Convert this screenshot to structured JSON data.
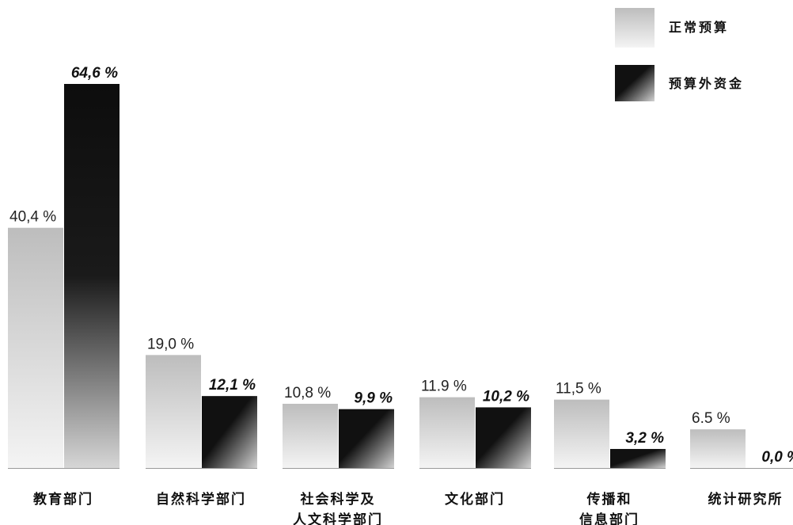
{
  "chart_data": {
    "type": "bar",
    "title": "",
    "xlabel": "",
    "ylabel": "",
    "ylim": [
      0,
      66
    ],
    "grid": false,
    "legend_position": "top-right",
    "categories": [
      [
        "教育部门"
      ],
      [
        "自然科学部门"
      ],
      [
        "社会科学及",
        "人文科学部门"
      ],
      [
        "文化部门"
      ],
      [
        "传播和",
        "信息部门"
      ],
      [
        "统计研究所"
      ]
    ],
    "series": [
      {
        "name": "正常预算",
        "values": [
          40.4,
          19.0,
          10.8,
          11.9,
          11.5,
          6.5
        ],
        "labels": [
          "40,4 %",
          "19,0 %",
          "10,8 %",
          "11.9 %",
          "11,5 %",
          "6.5 %"
        ]
      },
      {
        "name": "预算外资金",
        "values": [
          64.6,
          12.1,
          9.9,
          10.2,
          3.2,
          0.0
        ],
        "labels": [
          "64,6 %",
          "12,1 %",
          "9,9 %",
          "10,2 %",
          "3,2 %",
          "0,0 %"
        ]
      }
    ],
    "colors": {
      "regular_light": "#f2f2f2",
      "regular_dark": "#bdbdbd",
      "extra_dark": "#111111",
      "extra_light": "#cfcfcf"
    }
  }
}
